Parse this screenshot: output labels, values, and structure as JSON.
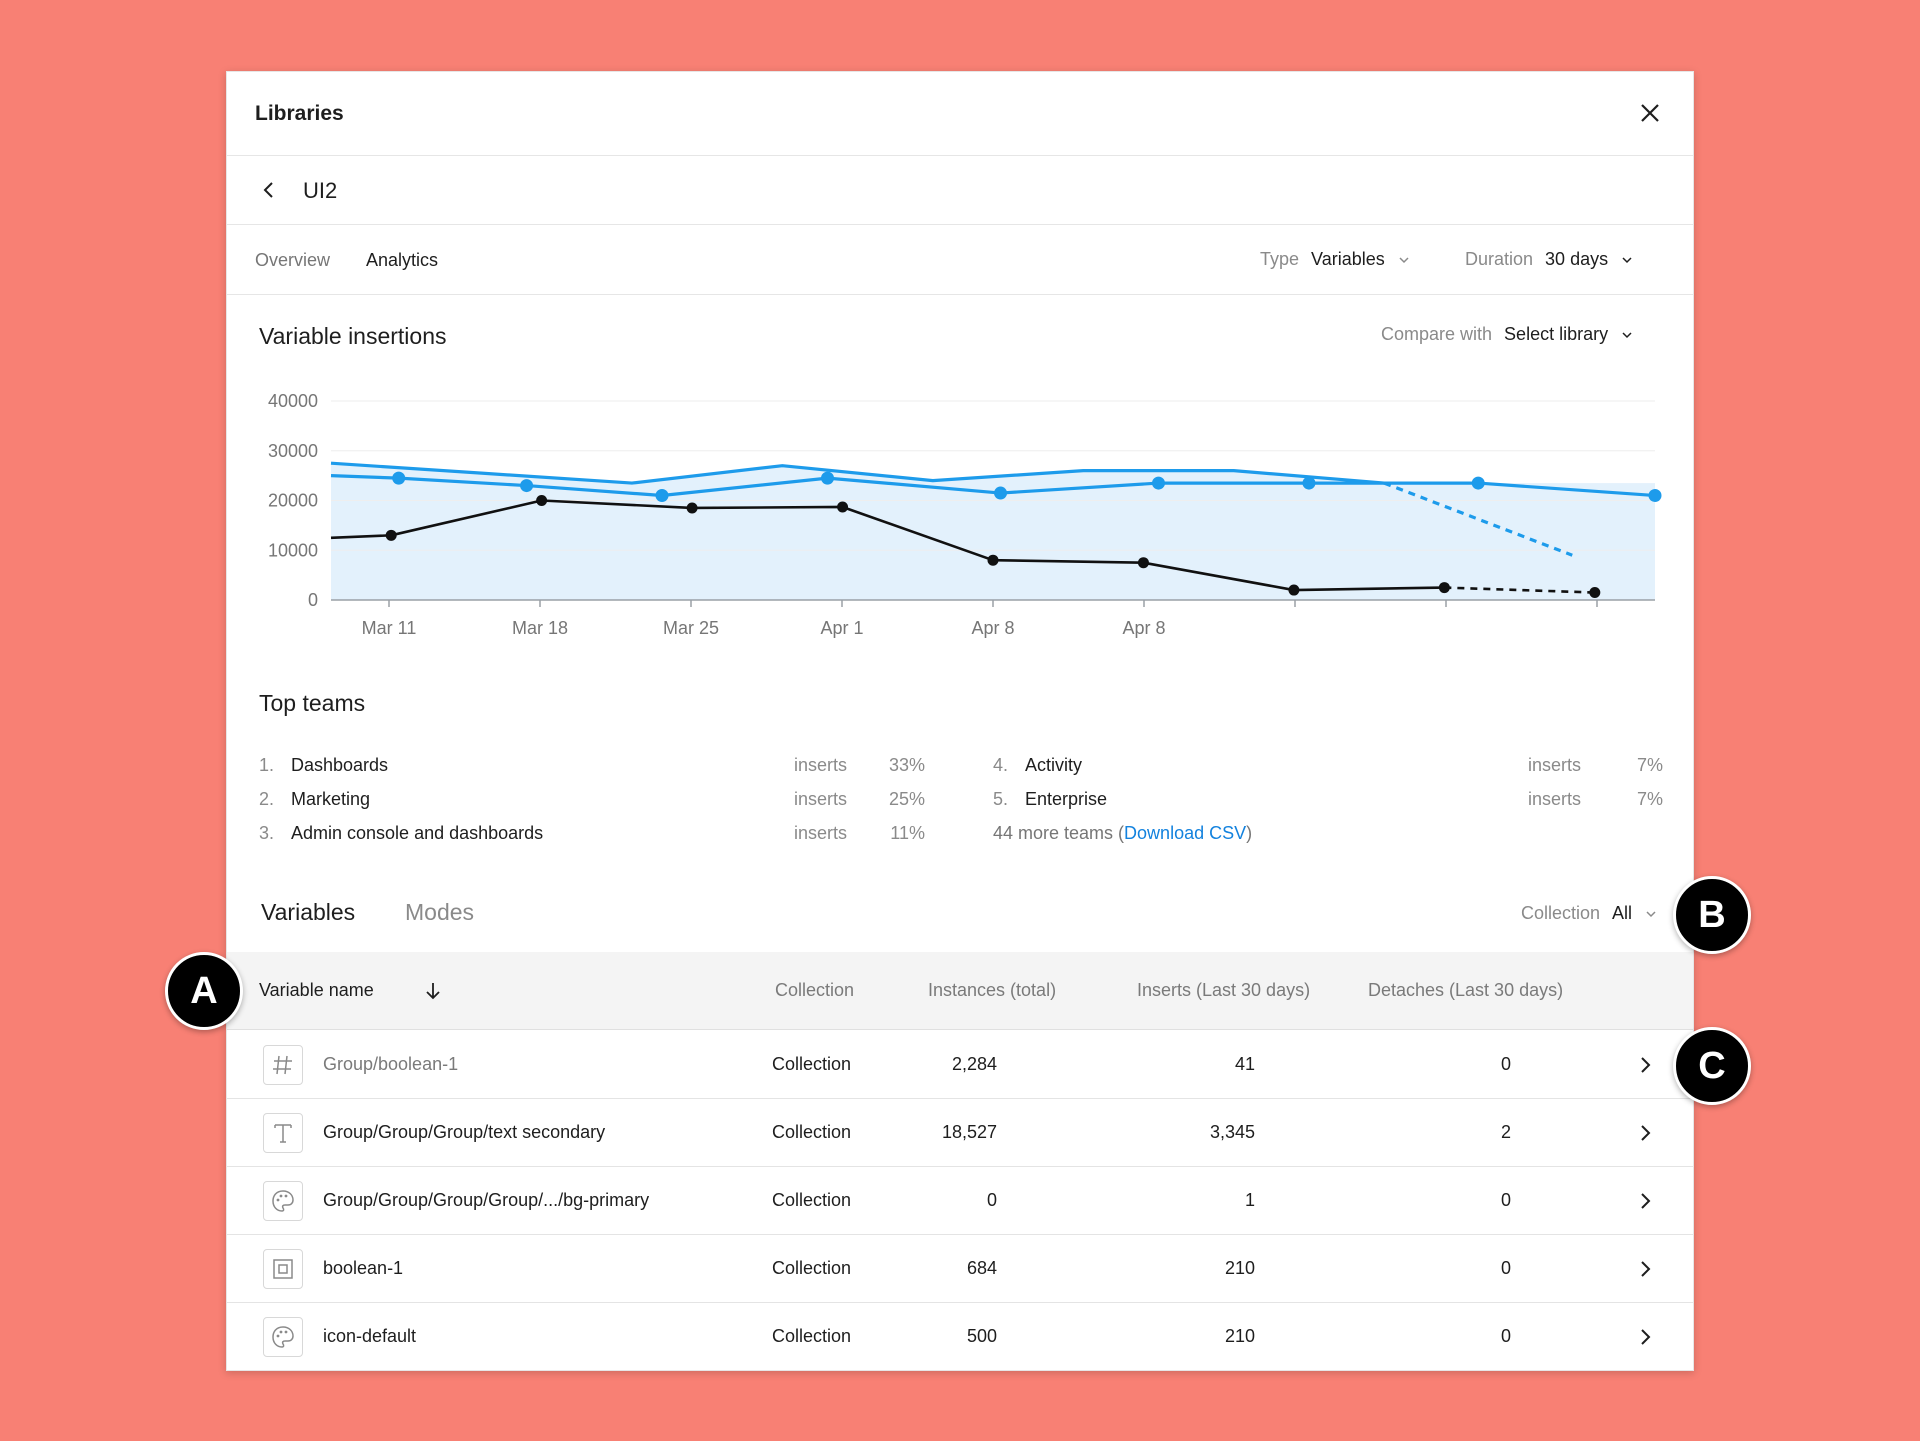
{
  "window": {
    "title": "Libraries"
  },
  "library": {
    "name": "UI2"
  },
  "tabs": [
    {
      "label": "Overview"
    },
    {
      "label": "Analytics"
    }
  ],
  "filters": {
    "type_label": "Type",
    "type_value": "Variables",
    "duration_label": "Duration",
    "duration_value": "30 days"
  },
  "chart_section": {
    "title": "Variable insertions",
    "compare_label": "Compare with",
    "compare_value": "Select library"
  },
  "chart_data": {
    "type": "line",
    "title": "Variable insertions",
    "xlabel": "",
    "ylabel": "",
    "ylim": [
      0,
      40000
    ],
    "yticks": [
      0,
      10000,
      20000,
      30000,
      40000
    ],
    "xtick_labels": [
      "Mar 11",
      "Mar 18",
      "Mar 25",
      "Apr 1",
      "Apr 8",
      "Apr 8",
      "",
      "",
      ""
    ],
    "grid": true,
    "colors": {
      "blue": "#1D9BEB",
      "black": "#111111",
      "fill": "#E3F1FC",
      "gridline": "#EEEEEE"
    },
    "series": [
      {
        "color": "blue",
        "style": "solid",
        "markers": false,
        "x": [
          0,
          2,
          4,
          6,
          8,
          10,
          12,
          14
        ],
        "y": [
          27500,
          25500,
          23500,
          27000,
          24000,
          26000,
          26000,
          23500
        ]
      },
      {
        "color": "blue",
        "style": "solid",
        "markers": true,
        "x": [
          0,
          0.9,
          2.6,
          4.4,
          6.6,
          8.9,
          11,
          13,
          15.25,
          17.6
        ],
        "y": [
          25000,
          24500,
          23000,
          21000,
          24500,
          21500,
          23500,
          23500,
          23500,
          21000
        ]
      },
      {
        "color": "blue",
        "style": "dashed",
        "markers": false,
        "x": [
          14,
          16.5
        ],
        "y": [
          23500,
          9000
        ]
      },
      {
        "color": "black",
        "style": "solid",
        "markers": true,
        "x": [
          0,
          0.8,
          2.8,
          4.8,
          6.8,
          8.8,
          10.8,
          12.8,
          14.8
        ],
        "y": [
          12500,
          13000,
          20000,
          18500,
          18700,
          8000,
          7500,
          2000,
          2500
        ]
      },
      {
        "color": "black",
        "style": "dashed",
        "markers": true,
        "x": [
          14.8,
          16.8
        ],
        "y": [
          2500,
          1500
        ]
      }
    ]
  },
  "top_teams": {
    "title": "Top teams",
    "metric_label": "inserts",
    "items": [
      {
        "rank": "1.",
        "name": "Dashboards",
        "pct": "33%"
      },
      {
        "rank": "2.",
        "name": "Marketing",
        "pct": "25%"
      },
      {
        "rank": "3.",
        "name": "Admin console and dashboards",
        "pct": "11%"
      },
      {
        "rank": "4.",
        "name": "Activity",
        "pct": "7%"
      },
      {
        "rank": "5.",
        "name": "Enterprise",
        "pct": "7%"
      }
    ],
    "more_text": "44 more teams (",
    "download_label": "Download CSV",
    "more_close": ")"
  },
  "variables_tabs": [
    {
      "label": "Variables"
    },
    {
      "label": "Modes"
    }
  ],
  "collection_filter": {
    "label": "Collection",
    "value": "All"
  },
  "table": {
    "columns": [
      "Variable name",
      "Collection",
      "Instances (total)",
      "Inserts (Last 30 days)",
      "Detaches (Last 30 days)"
    ],
    "rows": [
      {
        "icon": "hash-icon",
        "name": "Group/boolean-1",
        "collection": "Collection",
        "instances": "2,284",
        "inserts": "41",
        "detaches": "0"
      },
      {
        "icon": "text-icon",
        "name": "Group/Group/Group/text secondary",
        "collection": "Collection",
        "instances": "18,527",
        "inserts": "3,345",
        "detaches": "2"
      },
      {
        "icon": "palette-icon",
        "name": "Group/Group/Group/Group/.../bg-primary",
        "collection": "Collection",
        "instances": "0",
        "inserts": "1",
        "detaches": "0"
      },
      {
        "icon": "boolean-icon",
        "name": "boolean-1",
        "collection": "Collection",
        "instances": "684",
        "inserts": "210",
        "detaches": "0"
      },
      {
        "icon": "palette-icon",
        "name": "icon-default",
        "collection": "Collection",
        "instances": "500",
        "inserts": "210",
        "detaches": "0"
      }
    ]
  },
  "callouts": {
    "a": "A",
    "b": "B",
    "c": "C"
  }
}
